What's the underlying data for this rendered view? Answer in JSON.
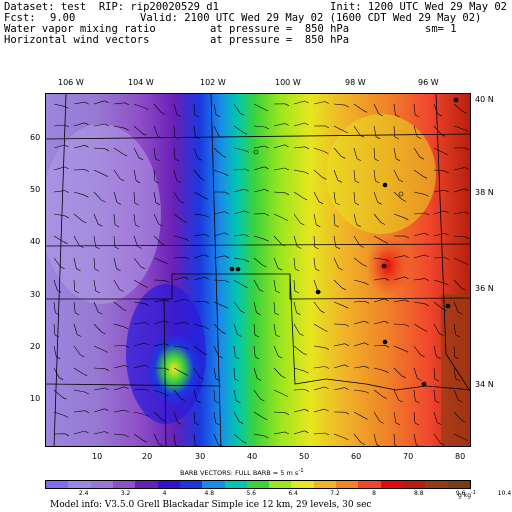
{
  "header": {
    "dataset": "Dataset: test  RIP: rip20020529 d1",
    "init": "Init: 1200 UTC Wed 29 May 02",
    "fcst_label": "Fcst:",
    "fcst_value": "9.00",
    "valid": "Valid: 2100 UTC Wed 29 May 02 (1600 CDT Wed 29 May 02)",
    "field1": "Water vapor mixing ratio",
    "field1_pressure": "at pressure =  850 hPa",
    "sm": "sm= 1",
    "field2": "Horizontal wind vectors",
    "field2_pressure": "at pressure =  850 hPa"
  },
  "axes": {
    "lon_top": [
      "106 W",
      "104 W",
      "102 W",
      "100 W",
      "98 W",
      "96 W"
    ],
    "lat_right": [
      "40 N",
      "38 N",
      "36 N",
      "34 N"
    ],
    "y_left": [
      "60",
      "50",
      "40",
      "30",
      "20",
      "10"
    ],
    "x_bottom": [
      "10",
      "20",
      "30",
      "40",
      "50",
      "60",
      "70",
      "80"
    ]
  },
  "legend": {
    "barbs_title": "BARB VECTORS:  FULL BARB = 5 m s",
    "barbs_exp": "-1",
    "units": "g kg",
    "units_exp": "-1",
    "levels": [
      "2.4",
      "3.2",
      "4",
      "4.8",
      "5.6",
      "6.4",
      "7.2",
      "8",
      "8.8",
      "9.6",
      "10.4"
    ],
    "colors": [
      "#7f6cf0",
      "#9b86e0",
      "#9878d2",
      "#8e4fc8",
      "#6a20b6",
      "#3a10d0",
      "#1b38e0",
      "#1a8ce8",
      "#00c8b0",
      "#3cd23c",
      "#9ce61e",
      "#e6e61e",
      "#f0b428",
      "#f08228",
      "#f0462d",
      "#e60a0a",
      "#b41e0a",
      "#963c14",
      "#783c14"
    ]
  },
  "model_info": "Model info: V3.5.0  Grell    Blackadar  Simple ice   12 km,  29 levels,   30 sec",
  "map": {
    "description_colors": {
      "dry": "#9b86e0",
      "moist": "#963c14"
    },
    "cities": 9
  }
}
